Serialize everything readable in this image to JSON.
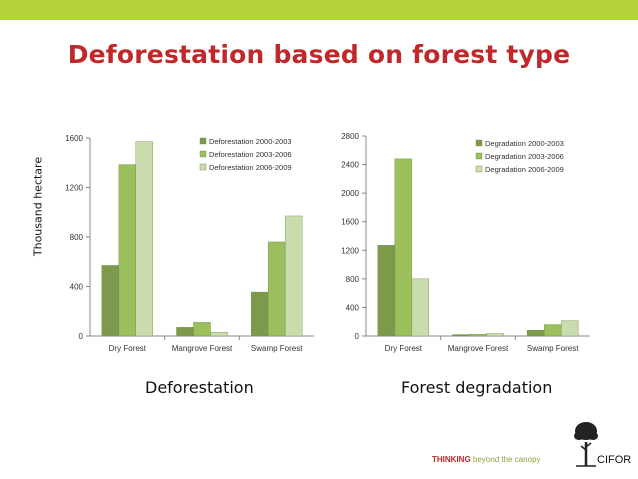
{
  "title": "Deforestation based on forest type",
  "y_axis_label": "Thousand hectare",
  "captions": [
    "Deforestation",
    "Forest degradation"
  ],
  "footer": {
    "bold": "THINKING",
    "rest": "beyond the canopy"
  },
  "logo": {
    "text": "CIFOR",
    "icon": "tree-icon"
  },
  "colors": {
    "top_bar": "#b4d23a",
    "title": "#c0282a",
    "series": [
      "#7d9a4c",
      "#9bbf5c",
      "#c9dcae"
    ]
  },
  "chart_data": [
    {
      "type": "bar",
      "categories": [
        "Dry Forest",
        "Mangrove Forest",
        "Swamp Forest"
      ],
      "series": [
        {
          "name": "Deforestation 2000-2003",
          "values": [
            570,
            70,
            355
          ]
        },
        {
          "name": "Deforestation 2003-2006",
          "values": [
            1385,
            110,
            760
          ]
        },
        {
          "name": "Deforestation 2006-2009",
          "values": [
            1570,
            30,
            970
          ]
        }
      ],
      "ylim": [
        0,
        1600
      ],
      "yticks": [
        0,
        400,
        800,
        1200,
        1600
      ],
      "legend": "top-right",
      "grid": false
    },
    {
      "type": "bar",
      "categories": [
        "Dry Forest",
        "Mangrove Forest",
        "Swamp Forest"
      ],
      "series": [
        {
          "name": "Degradation 2000-2003",
          "values": [
            1270,
            20,
            80
          ]
        },
        {
          "name": "Degradation 2003-2006",
          "values": [
            2480,
            25,
            160
          ]
        },
        {
          "name": "Degradation 2006-2009",
          "values": [
            800,
            35,
            215
          ]
        }
      ],
      "ylim": [
        0,
        2800
      ],
      "yticks": [
        0,
        400,
        800,
        1200,
        1600,
        2000,
        2400,
        2800
      ],
      "legend": "top-right",
      "grid": false
    }
  ]
}
